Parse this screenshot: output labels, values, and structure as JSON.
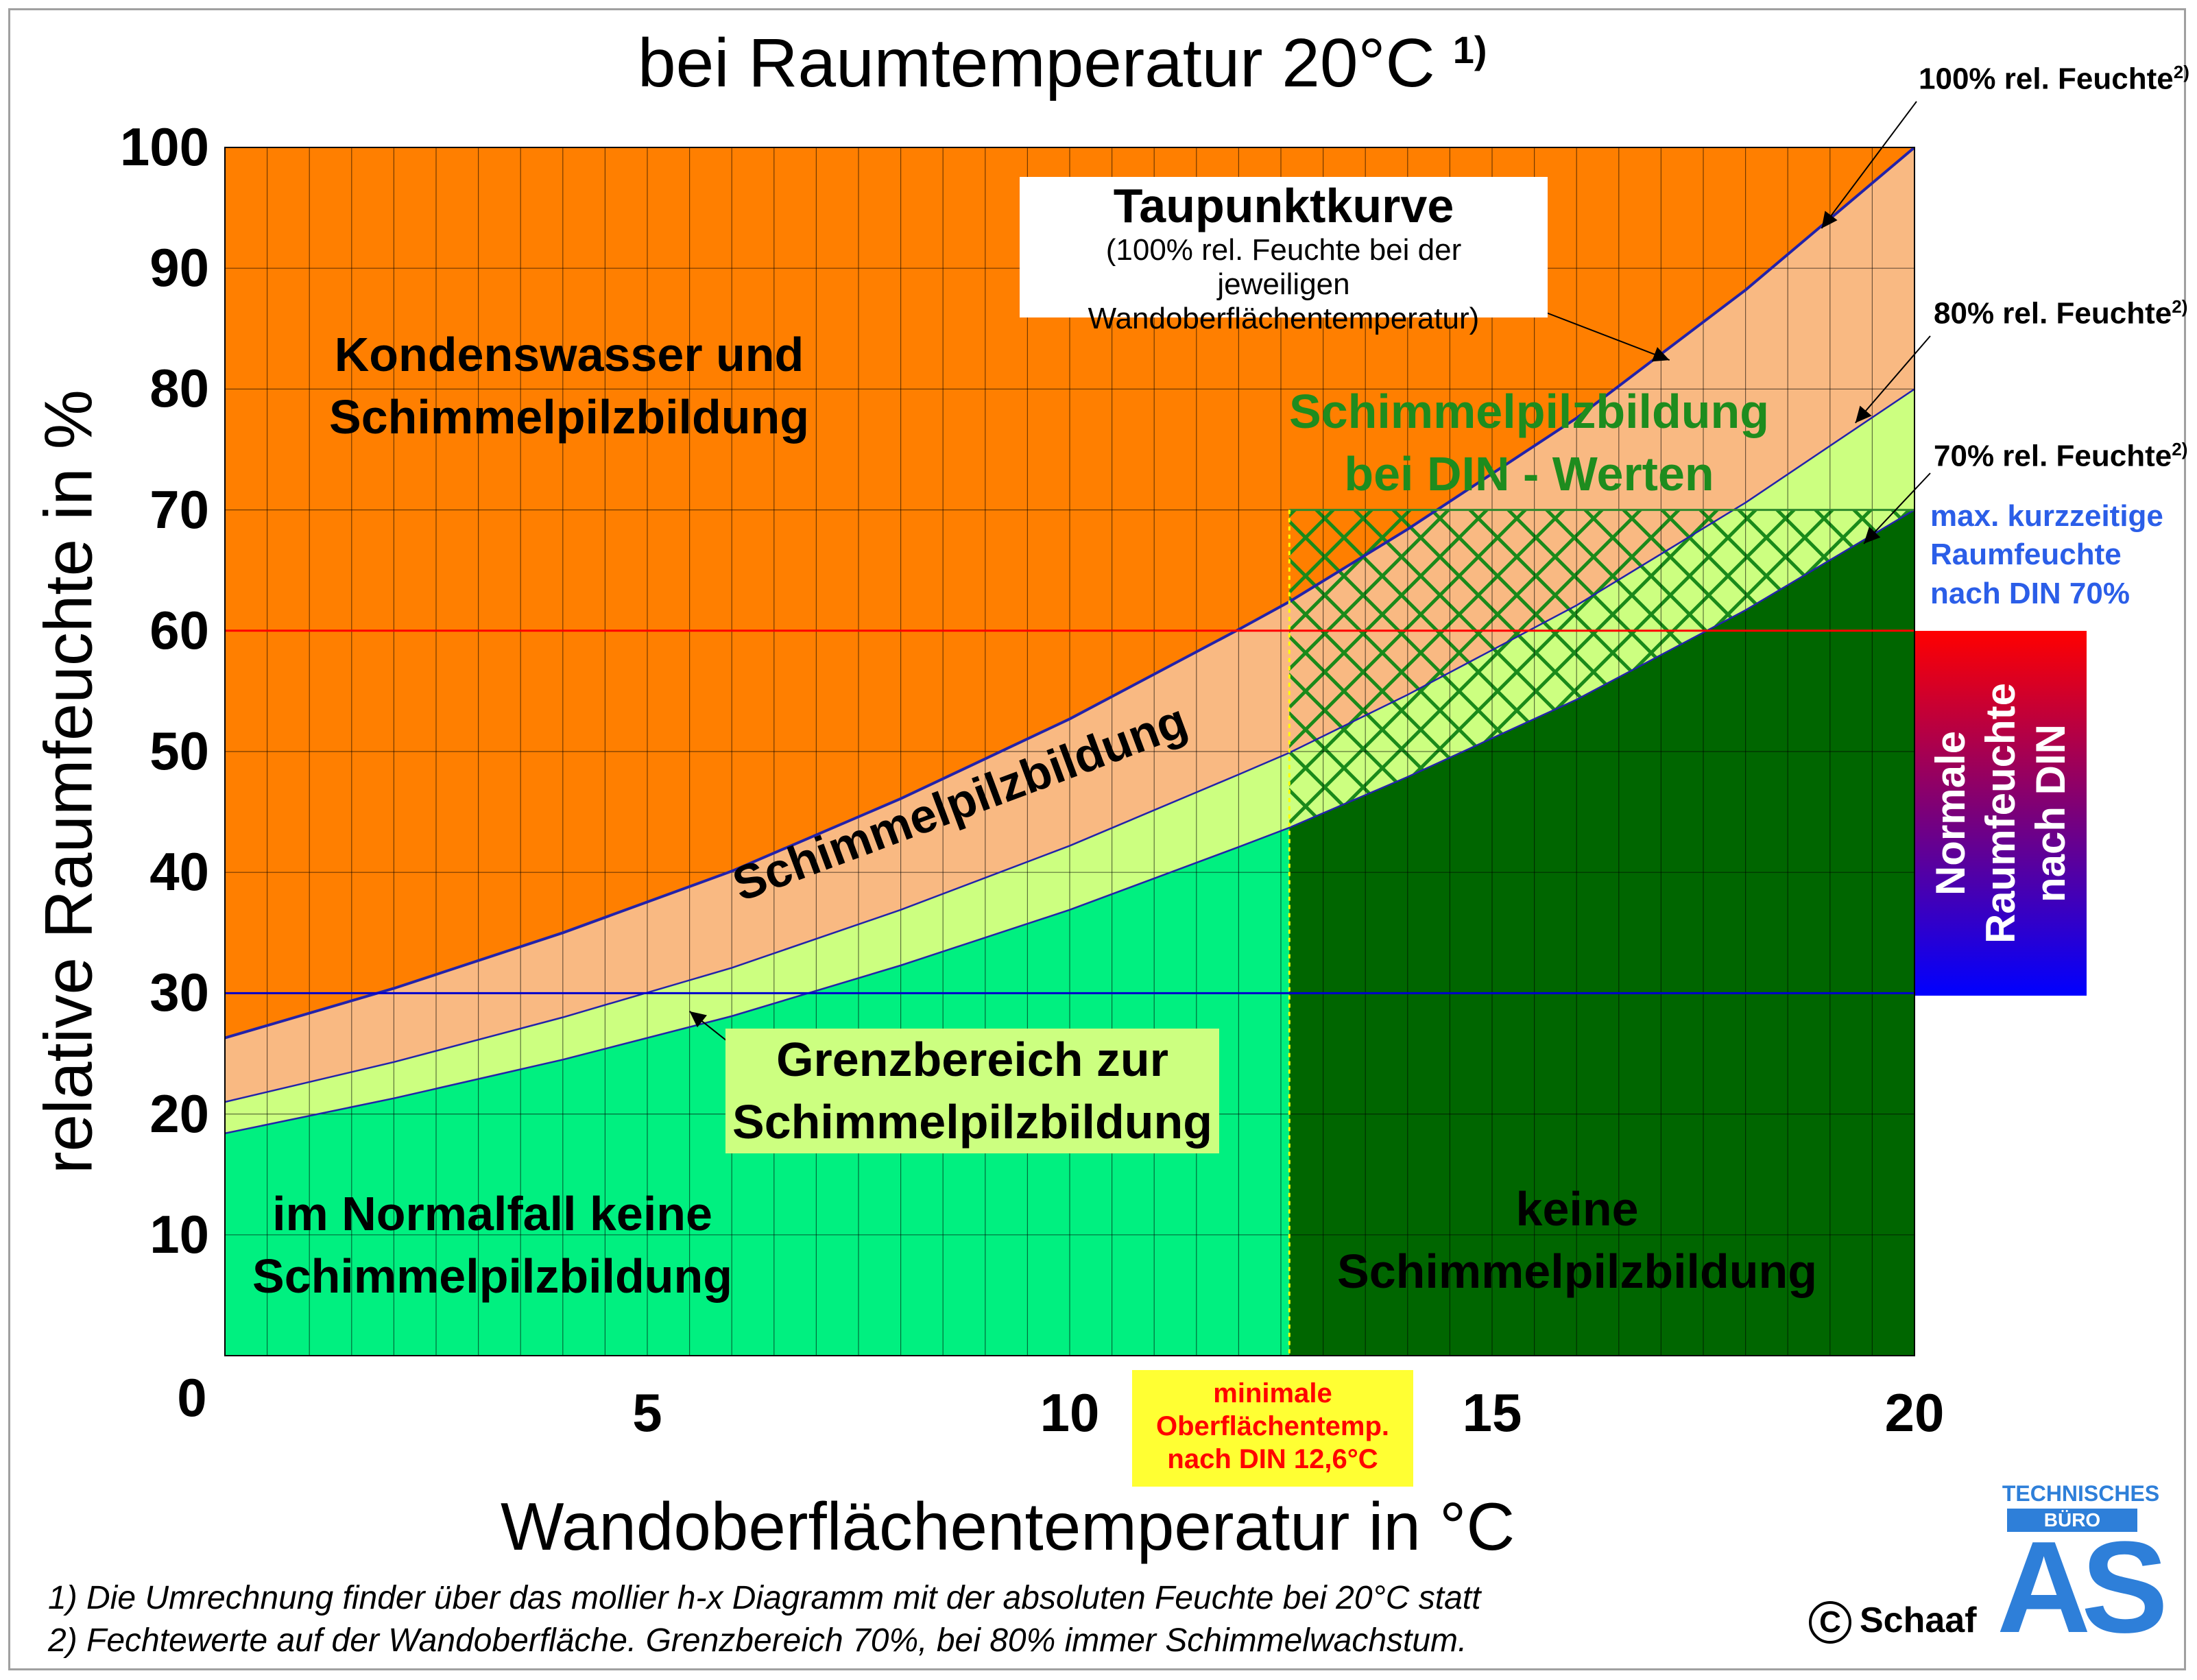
{
  "chart_data": {
    "type": "area",
    "title": "bei Raumtemperatur 20°C",
    "title_note": "1)",
    "xlabel": "Wandoberflächentemperatur in °C",
    "ylabel": "relative Raumfeuchte in %",
    "xlim": [
      0,
      20
    ],
    "ylim": [
      0,
      100
    ],
    "x_ticks": [
      "0",
      "5",
      "10",
      "15",
      "20"
    ],
    "y_ticks": [
      "10",
      "20",
      "30",
      "40",
      "50",
      "60",
      "70",
      "80",
      "90",
      "100"
    ],
    "grid": true,
    "series": [
      {
        "name": "100% rel. Feuchte",
        "x": [
          0,
          2,
          4,
          6,
          8,
          10,
          12,
          12.6,
          14,
          16,
          18,
          20
        ],
        "values": [
          26.3,
          30.4,
          35,
          40.1,
          46.1,
          52.7,
          60.1,
          62.4,
          68.4,
          77.6,
          88.2,
          100
        ]
      },
      {
        "name": "80% rel. Feuchte",
        "x": [
          0,
          2,
          4,
          6,
          8,
          10,
          12,
          12.6,
          14,
          16,
          18,
          20
        ],
        "values": [
          21.0,
          24.3,
          28,
          32.1,
          36.9,
          42.2,
          48.1,
          49.9,
          54.7,
          62.1,
          70.6,
          80
        ]
      },
      {
        "name": "70% rel. Feuchte",
        "x": [
          0,
          2,
          4,
          6,
          8,
          10,
          12,
          12.6,
          14,
          16,
          18,
          20
        ],
        "values": [
          18.4,
          21.3,
          24.5,
          28.1,
          32.3,
          36.9,
          42.1,
          43.7,
          47.9,
          54.3,
          61.7,
          70
        ]
      }
    ],
    "reference_lines": [
      {
        "axis": "y",
        "value": 70
      },
      {
        "axis": "y",
        "value": 60
      },
      {
        "axis": "y",
        "value": 30
      },
      {
        "axis": "x",
        "value": 12.6
      }
    ],
    "colors": {
      "condensation": "#ff7f00",
      "mold": "#f9b982",
      "border_zone": "#ccff80",
      "no_mold_light": "#00f080",
      "no_mold_dark": "#006600",
      "curve": "#2222aa",
      "line_60": "#ff0000",
      "line_30": "#0000cc",
      "hatch": "#1a8a1a"
    }
  },
  "labels": {
    "condensation": [
      "Kondenswasser und",
      "Schimmelpilzbildung"
    ],
    "taupunkt_title": "Taupunktkurve",
    "taupunkt_sub1": "(100% rel. Feuchte bei der",
    "taupunkt_sub2": "jeweiligen Wandoberflächentemperatur)",
    "din_mold": [
      "Schimmelpilzbildung",
      "bei DIN - Werten"
    ],
    "mold_diag": "Schimmelpilzbildung",
    "border_zone": [
      "Grenzbereich zur",
      "Schimmelpilzbildung"
    ],
    "normal_no_mold": [
      "im Normalfall keine",
      "Schimmelpilzbildung"
    ],
    "no_mold": [
      "keine",
      "Schimmelpilzbildung"
    ],
    "rh100": "100% rel. Feuchte",
    "rh80": "80% rel. Feuchte",
    "rh70": "70% rel. Feuchte",
    "rh_note": "2)",
    "max_din": [
      "max. kurzzeitige",
      "Raumfeuchte",
      "nach DIN 70%"
    ],
    "din_box": [
      "Normale",
      "Raumfeuchte",
      "nach DIN"
    ],
    "min_temp": [
      "minimale",
      "Oberflächentemp.",
      "nach DIN 12,6°C"
    ]
  },
  "footnotes": [
    "1) Die Umrechnung finder über das mollier h-x Diagramm mit der absoluten Feuchte bei 20°C statt",
    "2) Fechtewerte auf der Wandoberfläche. Grenzbereich 70%, bei 80% immer Schimmelwachstum."
  ],
  "brand": {
    "copyright": "C",
    "name": "Schaaf",
    "logo_line1": "TECHNISCHES",
    "logo_line2": "BÜRO",
    "logo_mark": "AS"
  }
}
